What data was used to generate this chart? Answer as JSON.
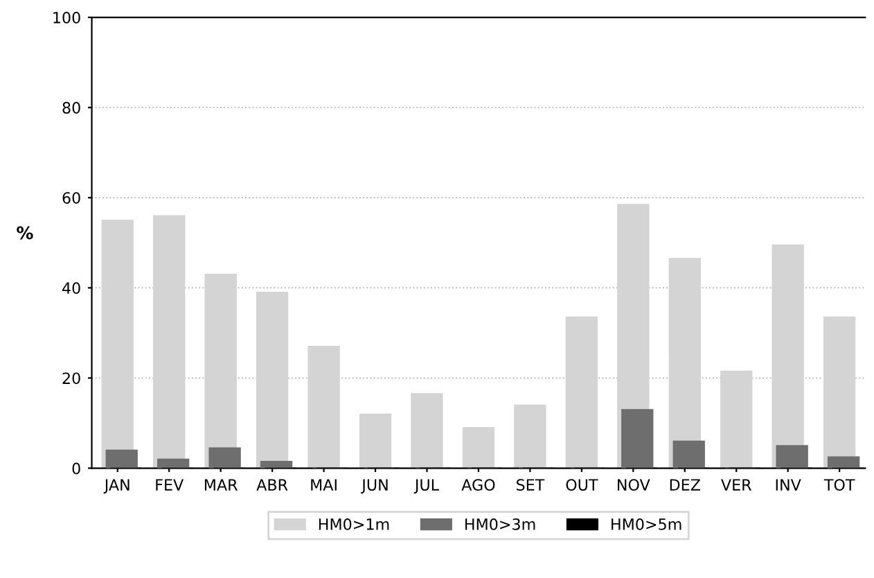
{
  "chart_data": {
    "type": "bar",
    "ylabel": "%",
    "categories": [
      "JAN",
      "FEV",
      "MAR",
      "ABR",
      "MAI",
      "JUN",
      "JUL",
      "AGO",
      "SET",
      "OUT",
      "NOV",
      "DEZ",
      "VER",
      "INV",
      "TOT"
    ],
    "series": [
      {
        "name": "HM0>1m",
        "color": "#d4d4d4",
        "values": [
          55,
          56,
          43,
          39,
          27,
          12,
          16.5,
          9,
          14,
          33.5,
          58.5,
          46.5,
          21.5,
          49.5,
          33.5
        ]
      },
      {
        "name": "HM0>3m",
        "color": "#6e6e6e",
        "values": [
          4,
          2,
          4.5,
          1.5,
          0,
          0,
          0,
          0,
          0,
          0,
          13,
          6,
          0,
          5,
          2.5
        ]
      },
      {
        "name": "HM0>5m",
        "color": "#000000",
        "values": [
          0,
          0,
          0,
          0,
          0,
          0,
          0,
          0,
          0,
          0,
          0,
          0,
          0,
          0,
          0
        ]
      }
    ],
    "ylim": [
      0,
      100
    ],
    "yticks": [
      0,
      20,
      40,
      60,
      80,
      100
    ],
    "grid": "y",
    "legend": "bottom"
  }
}
